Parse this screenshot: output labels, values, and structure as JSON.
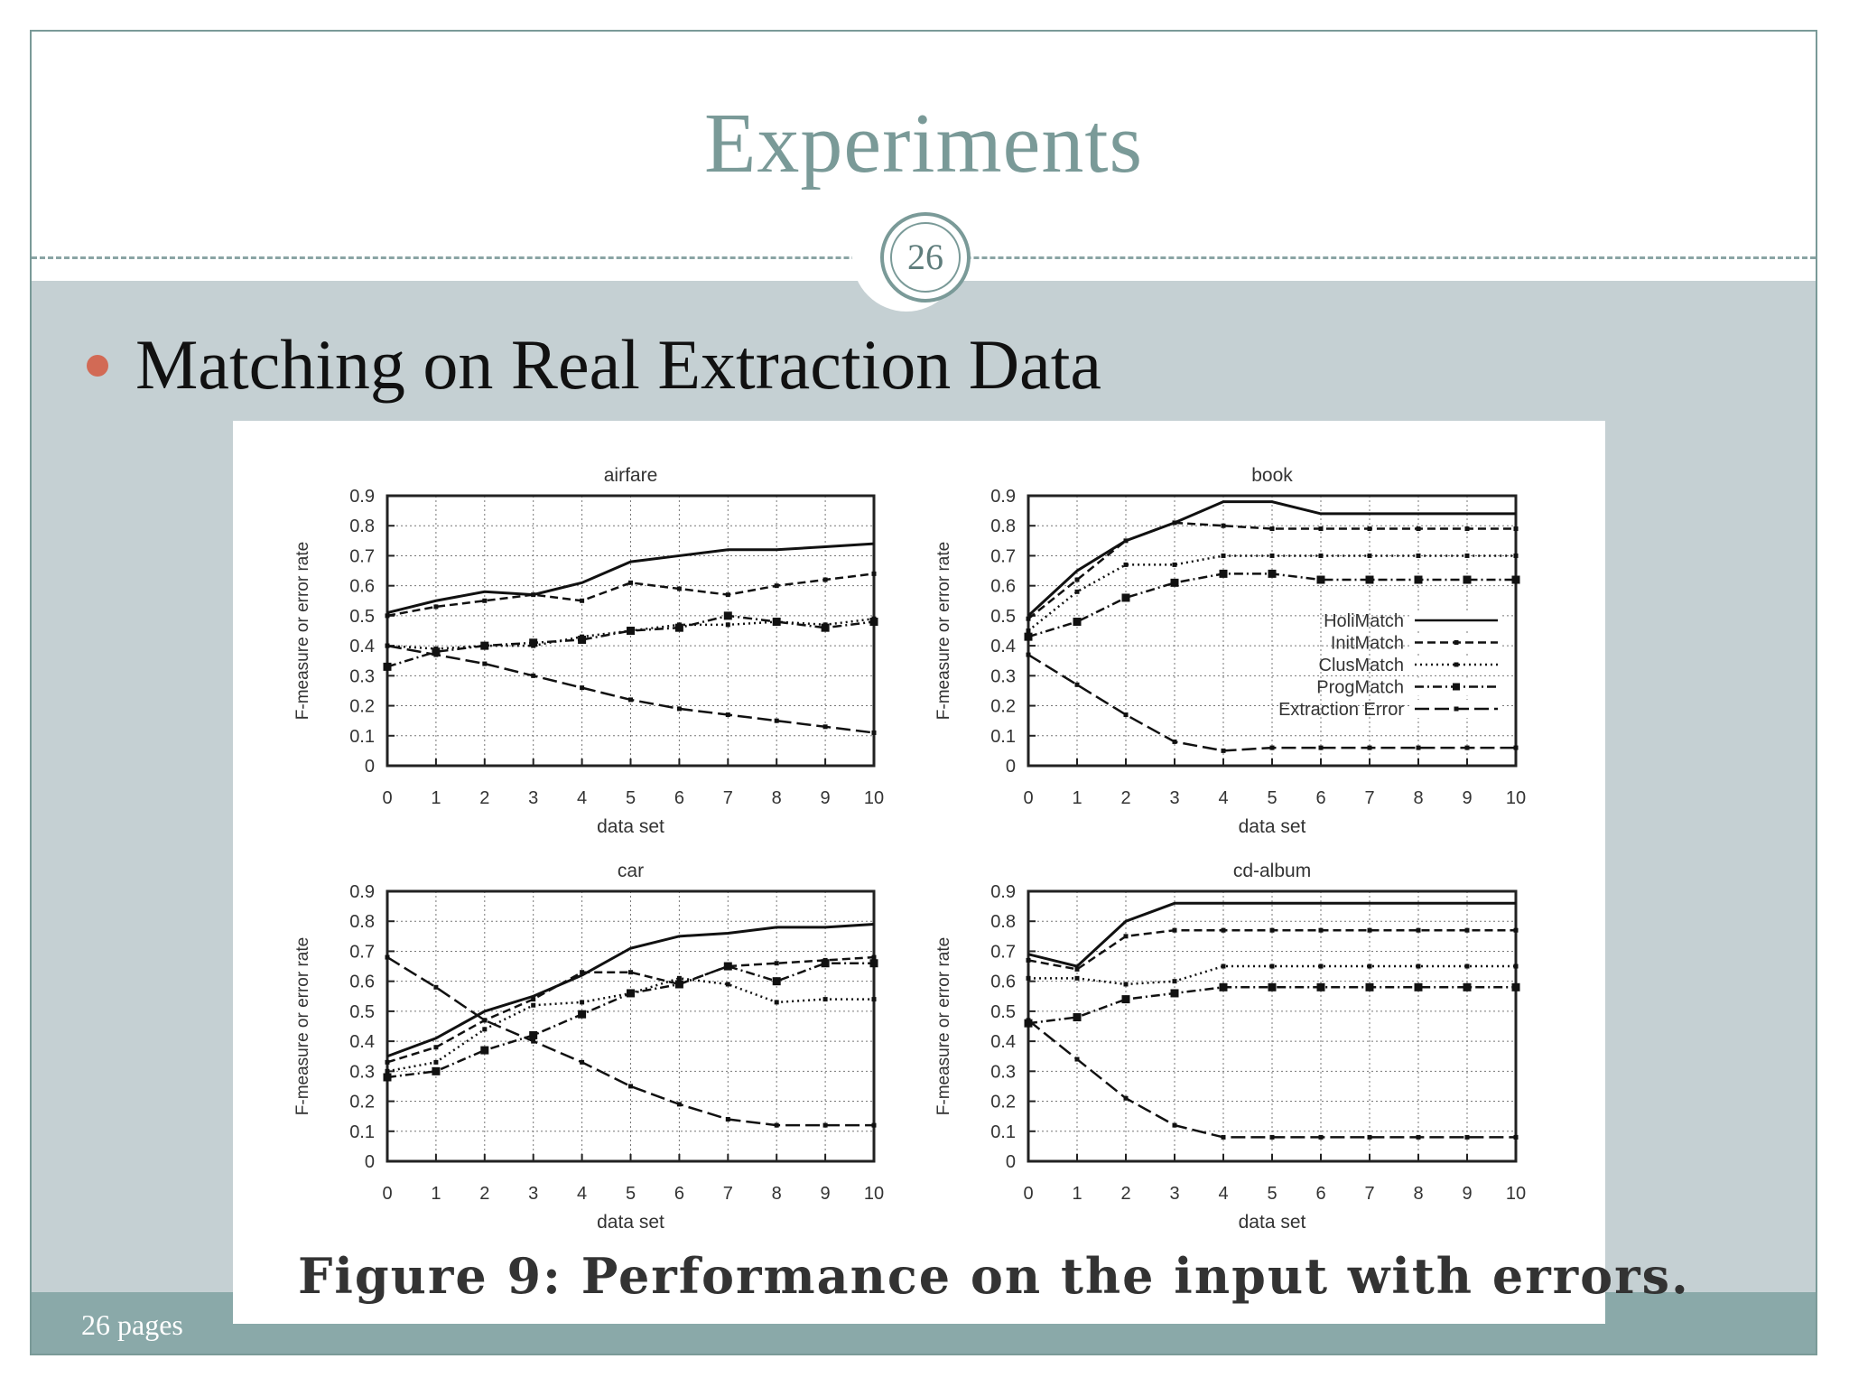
{
  "slide": {
    "title": "Experiments",
    "page_number": "26",
    "footer": "26 pages",
    "bullet": "Matching on Real Extraction Data",
    "caption": "Figure 9:  Performance on the input with errors."
  },
  "colors": {
    "title": "#7a9a98",
    "content_band": "#c5d0d3",
    "footer_band": "#8aa9a9",
    "bullet_dot": "#d26a55"
  },
  "chart_data": [
    {
      "type": "line",
      "title": "airfare",
      "xlabel": "data set",
      "ylabel": "F-measure or error rate",
      "x": [
        0,
        1,
        2,
        3,
        4,
        5,
        6,
        7,
        8,
        9,
        10
      ],
      "xlim": [
        0,
        10
      ],
      "ylim": [
        0,
        0.9
      ],
      "yticks": [
        0,
        0.1,
        0.2,
        0.3,
        0.4,
        0.5,
        0.6,
        0.7,
        0.8,
        0.9
      ],
      "grid": true,
      "series": [
        {
          "name": "HoliMatch",
          "style": "solid",
          "marker": "none",
          "values": [
            0.51,
            0.55,
            0.58,
            0.57,
            0.61,
            0.68,
            0.7,
            0.72,
            0.72,
            0.73,
            0.74
          ]
        },
        {
          "name": "InitMatch",
          "style": "dashed",
          "marker": "small",
          "values": [
            0.5,
            0.53,
            0.55,
            0.57,
            0.55,
            0.61,
            0.59,
            0.57,
            0.6,
            0.62,
            0.64
          ]
        },
        {
          "name": "ClusMatch",
          "style": "dotted",
          "marker": "small",
          "values": [
            0.4,
            0.39,
            0.4,
            0.4,
            0.43,
            0.45,
            0.47,
            0.47,
            0.48,
            0.47,
            0.49
          ]
        },
        {
          "name": "ProgMatch",
          "style": "dashdot",
          "marker": "square",
          "values": [
            0.33,
            0.38,
            0.4,
            0.41,
            0.42,
            0.45,
            0.46,
            0.5,
            0.48,
            0.46,
            0.48
          ]
        },
        {
          "name": "Extraction Error",
          "style": "longdash",
          "marker": "small",
          "values": [
            0.4,
            0.37,
            0.34,
            0.3,
            0.26,
            0.22,
            0.19,
            0.17,
            0.15,
            0.13,
            0.11
          ]
        }
      ]
    },
    {
      "type": "line",
      "title": "book",
      "xlabel": "data set",
      "ylabel": "F-measure or error rate",
      "x": [
        0,
        1,
        2,
        3,
        4,
        5,
        6,
        7,
        8,
        9,
        10
      ],
      "xlim": [
        0,
        10
      ],
      "ylim": [
        0,
        0.9
      ],
      "yticks": [
        0,
        0.1,
        0.2,
        0.3,
        0.4,
        0.5,
        0.6,
        0.7,
        0.8,
        0.9
      ],
      "grid": true,
      "legend": "right-middle",
      "series": [
        {
          "name": "HoliMatch",
          "style": "solid",
          "marker": "none",
          "values": [
            0.5,
            0.65,
            0.75,
            0.81,
            0.88,
            0.88,
            0.84,
            0.84,
            0.84,
            0.84,
            0.84
          ]
        },
        {
          "name": "InitMatch",
          "style": "dashed",
          "marker": "small",
          "values": [
            0.49,
            0.62,
            0.75,
            0.81,
            0.8,
            0.79,
            0.79,
            0.79,
            0.79,
            0.79,
            0.79
          ]
        },
        {
          "name": "ClusMatch",
          "style": "dotted",
          "marker": "small",
          "values": [
            0.45,
            0.58,
            0.67,
            0.67,
            0.7,
            0.7,
            0.7,
            0.7,
            0.7,
            0.7,
            0.7
          ]
        },
        {
          "name": "ProgMatch",
          "style": "dashdot",
          "marker": "square",
          "values": [
            0.43,
            0.48,
            0.56,
            0.61,
            0.64,
            0.64,
            0.62,
            0.62,
            0.62,
            0.62,
            0.62
          ]
        },
        {
          "name": "Extraction Error",
          "style": "longdash",
          "marker": "small",
          "values": [
            0.37,
            0.27,
            0.17,
            0.08,
            0.05,
            0.06,
            0.06,
            0.06,
            0.06,
            0.06,
            0.06
          ]
        }
      ]
    },
    {
      "type": "line",
      "title": "car",
      "xlabel": "data set",
      "ylabel": "F-measure or error rate",
      "x": [
        0,
        1,
        2,
        3,
        4,
        5,
        6,
        7,
        8,
        9,
        10
      ],
      "xlim": [
        0,
        10
      ],
      "ylim": [
        0,
        0.9
      ],
      "yticks": [
        0,
        0.1,
        0.2,
        0.3,
        0.4,
        0.5,
        0.6,
        0.7,
        0.8,
        0.9
      ],
      "grid": true,
      "series": [
        {
          "name": "HoliMatch",
          "style": "solid",
          "marker": "none",
          "values": [
            0.35,
            0.41,
            0.5,
            0.55,
            0.62,
            0.71,
            0.75,
            0.76,
            0.78,
            0.78,
            0.79
          ]
        },
        {
          "name": "InitMatch",
          "style": "dashed",
          "marker": "small",
          "values": [
            0.33,
            0.38,
            0.47,
            0.54,
            0.63,
            0.63,
            0.59,
            0.65,
            0.66,
            0.67,
            0.68
          ]
        },
        {
          "name": "ClusMatch",
          "style": "dotted",
          "marker": "small",
          "values": [
            0.3,
            0.33,
            0.44,
            0.52,
            0.53,
            0.56,
            0.61,
            0.59,
            0.53,
            0.54,
            0.54
          ]
        },
        {
          "name": "ProgMatch",
          "style": "dashdot",
          "marker": "square",
          "values": [
            0.28,
            0.3,
            0.37,
            0.42,
            0.49,
            0.56,
            0.59,
            0.65,
            0.6,
            0.66,
            0.66
          ]
        },
        {
          "name": "Extraction Error",
          "style": "longdash",
          "marker": "small",
          "values": [
            0.68,
            0.58,
            0.47,
            0.4,
            0.33,
            0.25,
            0.19,
            0.14,
            0.12,
            0.12,
            0.12
          ]
        }
      ]
    },
    {
      "type": "line",
      "title": "cd-album",
      "xlabel": "data set",
      "ylabel": "F-measure or error rate",
      "x": [
        0,
        1,
        2,
        3,
        4,
        5,
        6,
        7,
        8,
        9,
        10
      ],
      "xlim": [
        0,
        10
      ],
      "ylim": [
        0,
        0.9
      ],
      "yticks": [
        0,
        0.1,
        0.2,
        0.3,
        0.4,
        0.5,
        0.6,
        0.7,
        0.8,
        0.9
      ],
      "grid": true,
      "series": [
        {
          "name": "HoliMatch",
          "style": "solid",
          "marker": "none",
          "values": [
            0.69,
            0.65,
            0.8,
            0.86,
            0.86,
            0.86,
            0.86,
            0.86,
            0.86,
            0.86,
            0.86
          ]
        },
        {
          "name": "InitMatch",
          "style": "dashed",
          "marker": "small",
          "values": [
            0.67,
            0.64,
            0.75,
            0.77,
            0.77,
            0.77,
            0.77,
            0.77,
            0.77,
            0.77,
            0.77
          ]
        },
        {
          "name": "ClusMatch",
          "style": "dotted",
          "marker": "small",
          "values": [
            0.61,
            0.61,
            0.59,
            0.6,
            0.65,
            0.65,
            0.65,
            0.65,
            0.65,
            0.65,
            0.65
          ]
        },
        {
          "name": "ProgMatch",
          "style": "dashdot",
          "marker": "square",
          "values": [
            0.46,
            0.48,
            0.54,
            0.56,
            0.58,
            0.58,
            0.58,
            0.58,
            0.58,
            0.58,
            0.58
          ]
        },
        {
          "name": "Extraction Error",
          "style": "longdash",
          "marker": "small",
          "values": [
            0.47,
            0.34,
            0.21,
            0.12,
            0.08,
            0.08,
            0.08,
            0.08,
            0.08,
            0.08,
            0.08
          ]
        }
      ]
    }
  ]
}
